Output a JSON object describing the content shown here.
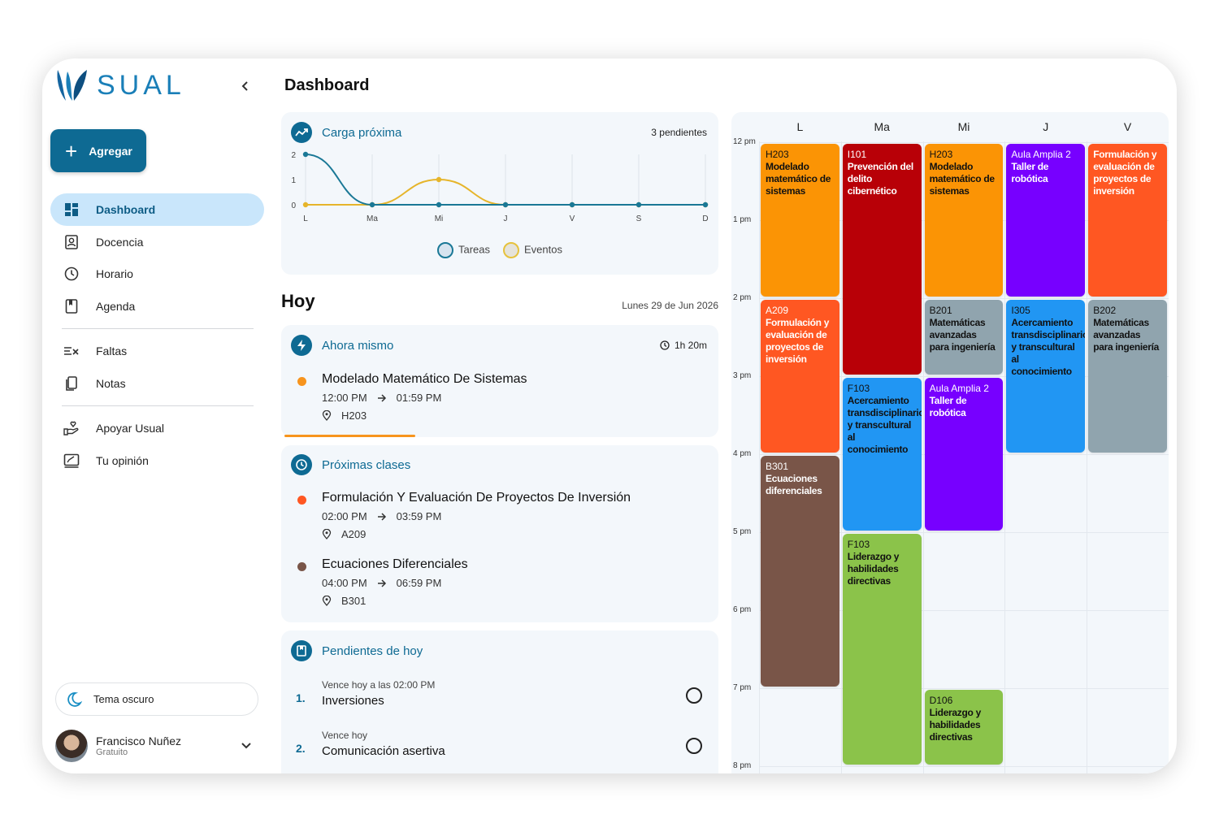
{
  "brand": {
    "logo_text": "SUAL"
  },
  "sidebar": {
    "add_label": "Agregar",
    "items": [
      {
        "label": "Dashboard",
        "icon": "dashboard-icon"
      },
      {
        "label": "Docencia",
        "icon": "badge-icon"
      },
      {
        "label": "Horario",
        "icon": "clock-icon"
      },
      {
        "label": "Agenda",
        "icon": "bookmark-book-icon"
      },
      {
        "label": "Faltas",
        "icon": "list-x-icon"
      },
      {
        "label": "Notas",
        "icon": "notes-icon"
      },
      {
        "label": "Apoyar Usual",
        "icon": "hand-heart-icon"
      },
      {
        "label": "Tu opinión",
        "icon": "feedback-icon"
      }
    ],
    "theme_label": "Tema oscuro",
    "user": {
      "name": "Francisco Nuñez",
      "plan": "Gratuito"
    }
  },
  "header": {
    "title": "Dashboard"
  },
  "carga": {
    "title": "Carga próxima",
    "pending": "3 pendientes",
    "legend": [
      "Tareas",
      "Eventos"
    ]
  },
  "chart_data": {
    "type": "line",
    "categories": [
      "L",
      "Ma",
      "Mi",
      "J",
      "V",
      "S",
      "D"
    ],
    "series": [
      {
        "name": "Tareas",
        "values": [
          2,
          0,
          0,
          0,
          0,
          0,
          0
        ],
        "color": "#1a7896"
      },
      {
        "name": "Eventos",
        "values": [
          0,
          0,
          1,
          0,
          0,
          0,
          0
        ],
        "color": "#e6b52b"
      }
    ],
    "ylim": [
      0,
      2
    ],
    "yticks": [
      0,
      1,
      2
    ]
  },
  "hoy": {
    "title": "Hoy",
    "date": "Lunes 29 de Jun 2026",
    "now": {
      "title": "Ahora mismo",
      "remaining": "1h 20m",
      "event": {
        "name": "Modelado Matemático De Sistemas",
        "start": "12:00 PM",
        "end": "01:59 PM",
        "room": "H203",
        "color": "#f7941d"
      },
      "progress": 0.3
    },
    "next": {
      "title": "Próximas clases",
      "events": [
        {
          "name": "Formulación Y Evaluación De Proyectos De Inversión",
          "start": "02:00 PM",
          "end": "03:59 PM",
          "room": "A209",
          "color": "#ff5722"
        },
        {
          "name": "Ecuaciones Diferenciales",
          "start": "04:00 PM",
          "end": "06:59 PM",
          "room": "B301",
          "color": "#795548"
        }
      ]
    },
    "pending": {
      "title": "Pendientes de hoy",
      "tasks": [
        {
          "num": "1.",
          "due": "Vence hoy a las 02:00 PM",
          "name": "Inversiones"
        },
        {
          "num": "2.",
          "due": "Vence hoy",
          "name": "Comunicación asertiva"
        }
      ]
    }
  },
  "calendar": {
    "days": [
      "L",
      "Ma",
      "Mi",
      "J",
      "V"
    ],
    "hours": [
      "12 pm",
      "1 pm",
      "2 pm",
      "3 pm",
      "4 pm",
      "5 pm",
      "6 pm",
      "7 pm",
      "8 pm"
    ],
    "events": [
      {
        "day": 0,
        "start": 12,
        "end": 14,
        "room": "H203",
        "course": "Modelado matemático de sistemas",
        "color": "#fb9405",
        "text": "dark"
      },
      {
        "day": 0,
        "start": 14,
        "end": 16,
        "room": "A209",
        "course": "Formulación y evaluación de proyectos de inversión",
        "color": "#ff5722",
        "text": "light"
      },
      {
        "day": 0,
        "start": 16,
        "end": 19,
        "room": "B301",
        "course": "Ecuaciones diferenciales",
        "color": "#795548",
        "text": "light"
      },
      {
        "day": 1,
        "start": 12,
        "end": 15,
        "room": "I101",
        "course": "Prevención del delito cibernético",
        "color": "#b80007",
        "text": "light"
      },
      {
        "day": 1,
        "start": 15,
        "end": 17,
        "room": "F103",
        "course": "Acercamiento transdisciplinario y transcultural al conocimiento",
        "color": "#2196f3",
        "text": "dark"
      },
      {
        "day": 1,
        "start": 17,
        "end": 20,
        "room": "F103",
        "course": "Liderazgo y habilidades directivas",
        "color": "#8bc34a",
        "text": "dark"
      },
      {
        "day": 2,
        "start": 12,
        "end": 14,
        "room": "H203",
        "course": "Modelado matemático de sistemas",
        "color": "#fb9405",
        "text": "dark"
      },
      {
        "day": 2,
        "start": 14,
        "end": 15,
        "room": "B201",
        "course": "Matemáticas avanzadas para ingeniería",
        "color": "#90a4ae",
        "text": "dark"
      },
      {
        "day": 2,
        "start": 15,
        "end": 17,
        "room": "Aula Amplia 2",
        "course": "Taller de robótica",
        "color": "#7700ff",
        "text": "light"
      },
      {
        "day": 2,
        "start": 19,
        "end": 20,
        "room": "D106",
        "course": "Liderazgo y habilidades directivas",
        "color": "#8bc34a",
        "text": "dark"
      },
      {
        "day": 3,
        "start": 12,
        "end": 14,
        "room": "Aula Amplia 2",
        "course": "Taller de robótica",
        "color": "#7700ff",
        "text": "light"
      },
      {
        "day": 3,
        "start": 14,
        "end": 16,
        "room": "I305",
        "course": "Acercamiento transdisciplinario y transcultural al conocimiento",
        "color": "#2196f3",
        "text": "dark"
      },
      {
        "day": 4,
        "start": 12,
        "end": 14,
        "room": "",
        "course": "Formulación y evaluación de proyectos de inversión",
        "color": "#ff5722",
        "text": "light"
      },
      {
        "day": 4,
        "start": 14,
        "end": 16,
        "room": "B202",
        "course": "Matemáticas avanzadas para ingeniería",
        "color": "#90a4ae",
        "text": "dark"
      }
    ]
  }
}
